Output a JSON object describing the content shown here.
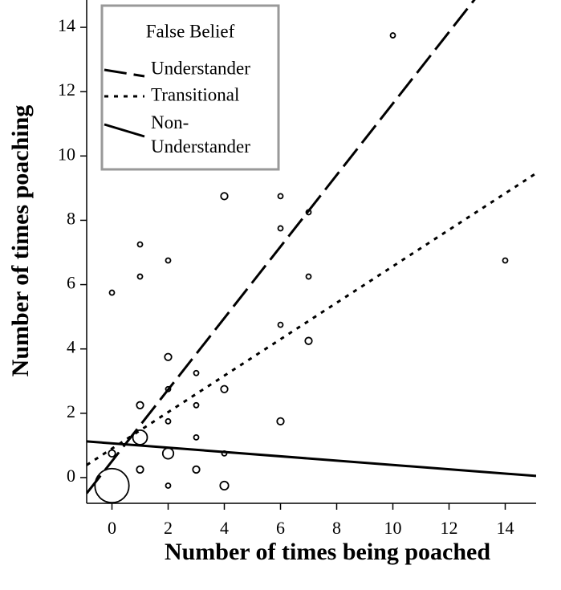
{
  "chart_data": {
    "type": "scatter",
    "xlabel": "Number of times being poached",
    "ylabel": "Number of times poaching",
    "xlim": [
      -0.9,
      15.1
    ],
    "ylim": [
      -0.8,
      14.85
    ],
    "xticks": [
      0,
      2,
      4,
      6,
      8,
      10,
      12,
      14
    ],
    "yticks": [
      0,
      2,
      4,
      6,
      8,
      10,
      12,
      14
    ],
    "x": [
      0,
      0,
      0,
      1,
      1,
      1,
      1,
      1,
      2,
      2,
      2,
      2,
      2,
      2,
      3,
      3,
      3,
      3,
      4,
      4,
      4,
      4,
      6,
      6,
      6,
      6,
      7,
      7,
      7,
      10,
      14
    ],
    "values": [
      -0.25,
      0.75,
      5.75,
      7.25,
      6.25,
      2.25,
      1.25,
      0.25,
      6.75,
      3.75,
      2.75,
      1.75,
      0.75,
      -0.25,
      3.25,
      2.25,
      1.25,
      0.25,
      8.75,
      2.75,
      0.75,
      -0.25,
      8.75,
      7.75,
      4.75,
      1.75,
      8.25,
      6.25,
      4.25,
      13.75,
      6.75
    ],
    "sizes": [
      50,
      2,
      1,
      1,
      1,
      2,
      9,
      2,
      1,
      2,
      1,
      1,
      5,
      1,
      1,
      1,
      1,
      2,
      2,
      2,
      1,
      3,
      1,
      1,
      1,
      2,
      1,
      1,
      2,
      1,
      1
    ],
    "legend_title": "False Belief",
    "fits": [
      {
        "name": "Understander",
        "dash": "28 9",
        "intercept": 0.51,
        "slope": 1.112
      },
      {
        "name": "Transitional",
        "dash": "5 7",
        "intercept": 0.9,
        "slope": 0.567
      },
      {
        "name": "Non-\nUnderstander",
        "dash": "none",
        "intercept": 1.065,
        "slope": -0.0672
      }
    ]
  }
}
